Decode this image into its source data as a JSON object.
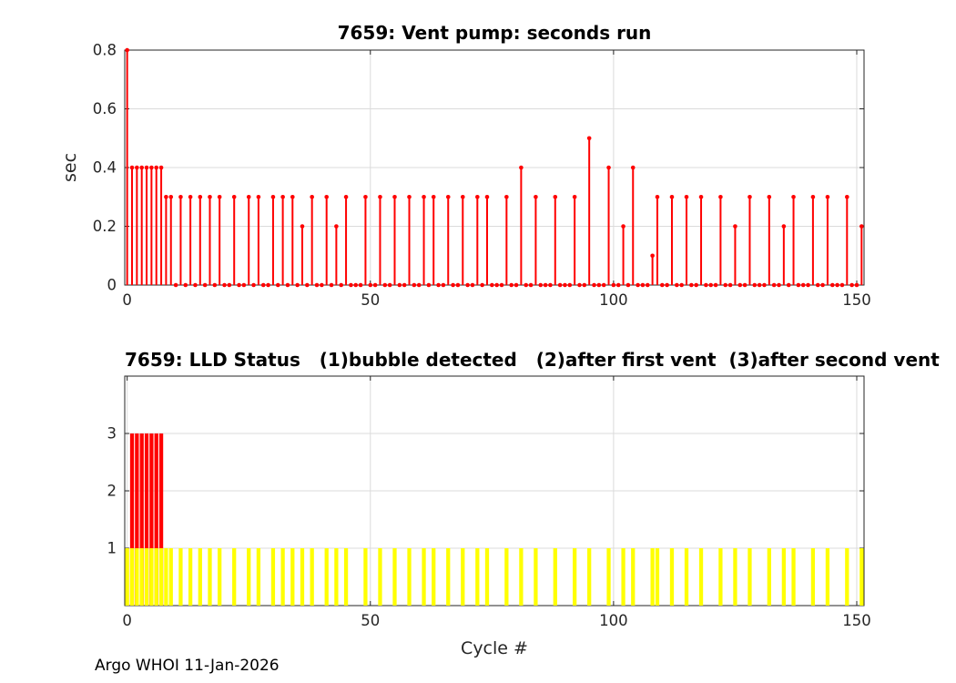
{
  "figure": {
    "footer_credit": "Argo WHOI 11-Jan-2026"
  },
  "colors": {
    "stem_red": "#ff0000",
    "bar_yellow": "#ffff00",
    "bar_red": "#ff0000",
    "grid": "#dbdbdb",
    "axis": "#262626",
    "tick_text": "#262626"
  },
  "chart_data": [
    {
      "type": "stem",
      "title": "7659: Vent pump: seconds run",
      "ylabel": "sec",
      "xlabel": "",
      "xlim": [
        -0.5,
        151.5
      ],
      "ylim": [
        0,
        0.8
      ],
      "xticks": [
        0,
        50,
        100,
        150
      ],
      "xtick_labels": [
        "0",
        "50",
        "100",
        "150"
      ],
      "yticks": [
        0,
        0.2,
        0.4,
        0.6,
        0.8
      ],
      "ytick_labels": [
        "0",
        "0.2",
        "0.4",
        "0.6",
        "0.8"
      ],
      "grid": true,
      "legend": "none",
      "color": "#ff0000",
      "cycle_range": [
        0,
        151
      ],
      "other_cycles_value": 0,
      "cycles_nonzero": [
        0,
        1,
        2,
        3,
        4,
        5,
        6,
        7,
        8,
        9,
        11,
        13,
        15,
        17,
        19,
        22,
        25,
        27,
        30,
        32,
        34,
        36,
        38,
        41,
        43,
        45,
        49,
        52,
        55,
        58,
        61,
        63,
        66,
        69,
        72,
        74,
        78,
        81,
        84,
        88,
        92,
        95,
        99,
        102,
        104,
        108,
        109,
        112,
        115,
        118,
        122,
        125,
        128,
        132,
        135,
        137,
        141,
        144,
        148,
        151
      ],
      "seconds_nonzero": [
        0.8,
        0.4,
        0.4,
        0.4,
        0.4,
        0.4,
        0.4,
        0.4,
        0.3,
        0.3,
        0.3,
        0.3,
        0.3,
        0.3,
        0.3,
        0.3,
        0.3,
        0.3,
        0.3,
        0.3,
        0.3,
        0.2,
        0.3,
        0.3,
        0.2,
        0.3,
        0.3,
        0.3,
        0.3,
        0.3,
        0.3,
        0.3,
        0.3,
        0.3,
        0.3,
        0.3,
        0.3,
        0.4,
        0.3,
        0.3,
        0.3,
        0.5,
        0.4,
        0.2,
        0.4,
        0.1,
        0.3,
        0.3,
        0.3,
        0.3,
        0.3,
        0.2,
        0.3,
        0.3,
        0.2,
        0.3,
        0.3,
        0.3,
        0.3,
        0.2
      ]
    },
    {
      "type": "bar",
      "title": "7659: LLD Status   (1)bubble detected   (2)after first vent  (3)after second vent",
      "ylabel": "",
      "xlabel": "Cycle #",
      "xlim": [
        -0.5,
        151.5
      ],
      "ylim": [
        0,
        4
      ],
      "xticks": [
        0,
        50,
        100,
        150
      ],
      "xtick_labels": [
        "0",
        "50",
        "100",
        "150"
      ],
      "yticks": [
        1,
        2,
        3
      ],
      "ytick_labels": [
        "1",
        "2",
        "3"
      ],
      "grid": true,
      "legend": "none",
      "bar_width": 0.8,
      "series": [
        {
          "name": "status-3-after-second-vent",
          "color": "#ff0000",
          "value": 3,
          "cycles": [
            1,
            2,
            3,
            4,
            5,
            6,
            7
          ]
        },
        {
          "name": "status-1-bubble-detected",
          "color": "#ffff00",
          "value": 1,
          "cycles": [
            0,
            1,
            2,
            3,
            4,
            5,
            6,
            7,
            8,
            9,
            11,
            13,
            15,
            17,
            19,
            22,
            25,
            27,
            30,
            32,
            34,
            36,
            38,
            41,
            43,
            45,
            49,
            52,
            55,
            58,
            61,
            63,
            66,
            69,
            72,
            74,
            78,
            81,
            84,
            88,
            92,
            95,
            99,
            102,
            104,
            108,
            109,
            112,
            115,
            118,
            122,
            125,
            128,
            132,
            135,
            137,
            141,
            144,
            148,
            151
          ]
        }
      ]
    }
  ]
}
